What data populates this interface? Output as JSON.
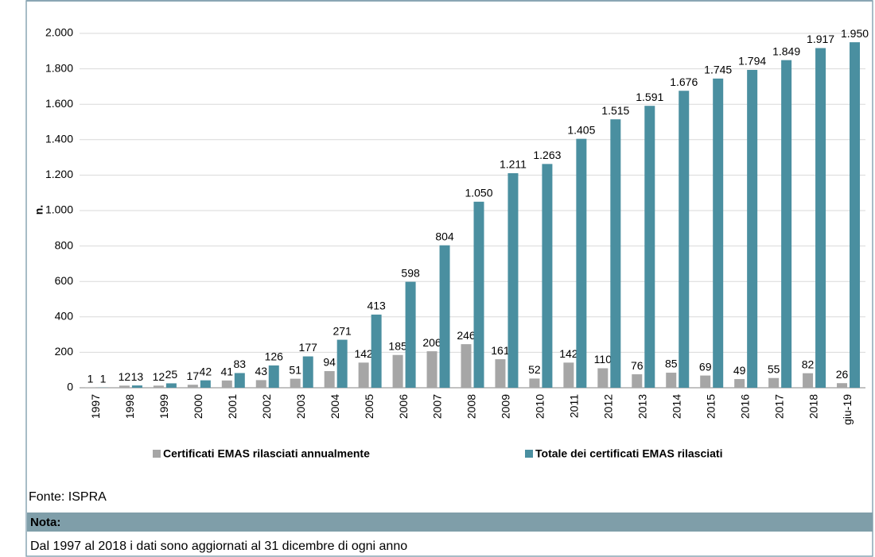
{
  "chart_data": {
    "type": "bar",
    "ylabel": "n.",
    "categories": [
      "1997",
      "1998",
      "1999",
      "2000",
      "2001",
      "2002",
      "2003",
      "2004",
      "2005",
      "2006",
      "2007",
      "2008",
      "2009",
      "2010",
      "2011",
      "2012",
      "2013",
      "2014",
      "2015",
      "2016",
      "2017",
      "2018",
      "giu-19"
    ],
    "series": [
      {
        "name": "Certificati EMAS rilasciati annualmente",
        "color": "#a6a6a6",
        "values": [
          1,
          12,
          12,
          17,
          41,
          43,
          51,
          94,
          142,
          185,
          206,
          246,
          161,
          52,
          142,
          110,
          76,
          85,
          69,
          49,
          55,
          82,
          26
        ]
      },
      {
        "name": "Totale dei certificati EMAS rilasciati",
        "color": "#4a8fa0",
        "values": [
          1,
          13,
          25,
          42,
          83,
          126,
          177,
          271,
          413,
          598,
          804,
          1050,
          1211,
          1263,
          1405,
          1515,
          1591,
          1676,
          1745,
          1794,
          1849,
          1917,
          1950
        ],
        "value_labels": [
          "1",
          "13",
          "25",
          "42",
          "83",
          "126",
          "177",
          "271",
          "413",
          "598",
          "804",
          "1.050",
          "1.211",
          "1.263",
          "1.405",
          "1.515",
          "1.591",
          "1.676",
          "1.745",
          "1.794",
          "1.849",
          "1.917",
          "1.950"
        ]
      }
    ],
    "ylim": [
      0,
      2000
    ],
    "yticks": [
      0,
      200,
      400,
      600,
      800,
      {
        "value": 1000,
        "label": "1.000"
      },
      {
        "value": 1200,
        "label": "1.200"
      },
      {
        "value": 1400,
        "label": "1.400"
      },
      {
        "value": 1600,
        "label": "1.600"
      },
      {
        "value": 1800,
        "label": "1.800"
      },
      {
        "value": 2000,
        "label": "2.000"
      }
    ],
    "grid": true
  },
  "footer": {
    "source": "Fonte: ISPRA",
    "note_title": "Nota:",
    "note": "Dal 1997 al 2018 i dati sono aggiornati al 31 dicembre di ogni anno"
  }
}
